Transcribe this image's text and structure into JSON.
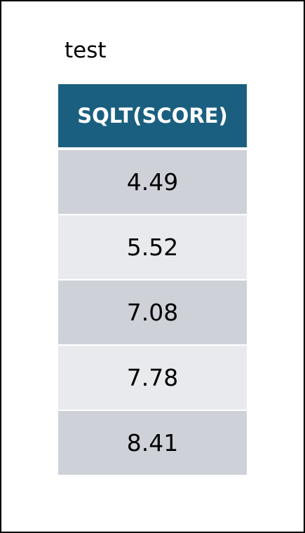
{
  "caption": "test",
  "table": {
    "column_header": "SQLT(SCORE)",
    "rows": [
      "4.49",
      "5.52",
      "7.08",
      "7.78",
      "8.41"
    ]
  },
  "colors": {
    "header_background": "#1b5f80",
    "header_text": "#ffffff",
    "row_dark": "#ced2d8",
    "row_light": "#e8eaed",
    "frame_border": "#000000"
  }
}
